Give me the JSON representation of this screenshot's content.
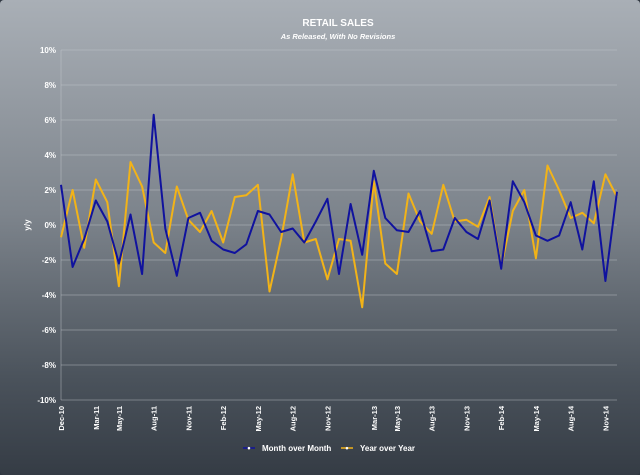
{
  "chart_data": {
    "type": "line",
    "title": "RETAIL SALES",
    "subtitle": "As Released, With No Revisions",
    "xlabel": "",
    "ylabel": "y/y",
    "ylim": [
      -10,
      10
    ],
    "y_ticks": [
      "10%",
      "8%",
      "6%",
      "4%",
      "2%",
      "0%",
      "-2%",
      "-4%",
      "-6%",
      "-8%",
      "-10%"
    ],
    "y_tick_values": [
      10,
      8,
      6,
      4,
      2,
      0,
      -2,
      -4,
      -6,
      -8,
      -10
    ],
    "x_tick_labels": [
      "Dec-10",
      "Mar-11",
      "May-11",
      "Aug-11",
      "Nov-11",
      "Feb-12",
      "May-12",
      "Aug-12",
      "Nov-12",
      "Mar-13",
      "May-13",
      "Aug-13",
      "Nov-13",
      "Feb-14",
      "May-14",
      "Aug-14",
      "Nov-14"
    ],
    "x_tick_index": [
      0,
      3,
      5,
      8,
      11,
      14,
      17,
      20,
      23,
      27,
      29,
      32,
      35,
      38,
      41,
      44,
      47
    ],
    "grid": true,
    "legend_position": "bottom",
    "series": [
      {
        "name": "Month over Month",
        "color": "#10129e",
        "values": [
          2.3,
          -2.4,
          -0.8,
          1.4,
          0.2,
          -2.2,
          0.6,
          -2.8,
          6.3,
          -0.2,
          -2.9,
          0.4,
          0.7,
          -0.9,
          -1.4,
          -1.6,
          -1.1,
          0.8,
          0.6,
          -0.4,
          -0.2,
          -1.0,
          0.2,
          1.5,
          -2.8,
          1.2,
          -1.7,
          3.1,
          0.4,
          -0.3,
          -0.4,
          0.8,
          -1.5,
          -1.4,
          0.4,
          -0.4,
          -0.8,
          1.4,
          -2.5,
          2.5,
          1.3,
          -0.6,
          -0.9,
          -0.6,
          1.3,
          -1.4,
          2.5,
          -3.2,
          1.9
        ]
      },
      {
        "name": "Year over Year",
        "color": "#f2b318",
        "values": [
          -0.7,
          2.0,
          -1.3,
          2.6,
          1.3,
          -3.5,
          3.6,
          2.2,
          -1.0,
          -1.6,
          2.2,
          0.3,
          -0.4,
          0.8,
          -1.0,
          1.6,
          1.7,
          2.3,
          -3.8,
          -0.8,
          2.9,
          -1.0,
          -0.8,
          -3.1,
          -0.8,
          -0.9,
          -4.7,
          2.5,
          -2.2,
          -2.8,
          1.8,
          0.2,
          -0.5,
          2.3,
          0.2,
          0.3,
          -0.1,
          1.6,
          -2.4,
          0.8,
          2.0,
          -1.9,
          3.4,
          2.0,
          0.4,
          0.7,
          0.1,
          2.9,
          1.6
        ]
      }
    ]
  }
}
